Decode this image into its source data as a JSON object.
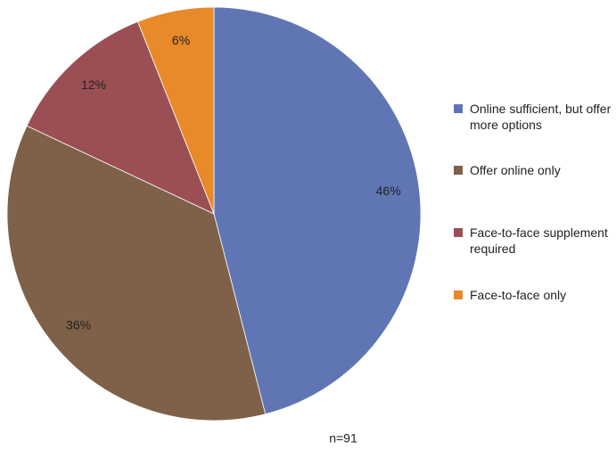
{
  "chart_data": {
    "type": "pie",
    "categories": [
      "Online sufficient, but offer more options",
      "Offer online only",
      "Face-to-face supplement required",
      "Face-to-face only"
    ],
    "values": [
      46,
      36,
      12,
      6
    ],
    "value_labels": [
      "46%",
      "36%",
      "12%",
      "6%"
    ],
    "colors": [
      "#6076b4",
      "#7e6148",
      "#9b4f55",
      "#e8892a"
    ],
    "legend": "right",
    "annotation": "n=91"
  }
}
